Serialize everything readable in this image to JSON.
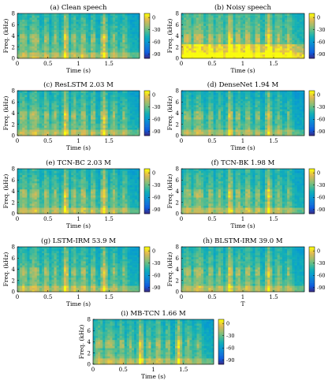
{
  "chart_data": [
    {
      "type": "heatmap",
      "title": "(a) Clean speech",
      "xlabel": "Time (s)",
      "ylabel": "Freq. (kHz)",
      "xlim": [
        0,
        2.0
      ],
      "ylim": [
        0,
        8
      ],
      "xticks": [
        "0",
        "0.5",
        "1",
        "1.5"
      ],
      "yticks": [
        "0",
        "2",
        "4",
        "6",
        "8"
      ],
      "colorbar": {
        "range": [
          -100,
          10
        ],
        "ticks": [
          "0",
          "-30",
          "-60",
          "-90"
        ]
      }
    },
    {
      "type": "heatmap",
      "title": "(b) Noisy speech",
      "xlabel": "Time (s)",
      "ylabel": "Freq. (kHz)",
      "xlim": [
        0,
        2.0
      ],
      "ylim": [
        0,
        8
      ],
      "xticks": [
        "0",
        "0.5",
        "1",
        "1.5"
      ],
      "yticks": [
        "0",
        "2",
        "4",
        "6",
        "8"
      ],
      "colorbar": {
        "range": [
          -100,
          10
        ],
        "ticks": [
          "0",
          "-30",
          "-60",
          "-90"
        ]
      }
    },
    {
      "type": "heatmap",
      "title": "(c) ResLSTM 2.03 M",
      "xlabel": "Time (s)",
      "ylabel": "Freq. (kHz)",
      "xlim": [
        0,
        2.0
      ],
      "ylim": [
        0,
        8
      ],
      "xticks": [
        "0",
        "0.5",
        "1",
        "1.5"
      ],
      "yticks": [
        "0",
        "2",
        "4",
        "6",
        "8"
      ],
      "colorbar": {
        "range": [
          -100,
          10
        ],
        "ticks": [
          "0",
          "-30",
          "-60",
          "-90"
        ]
      }
    },
    {
      "type": "heatmap",
      "title": "(d) DenseNet 1.94 M",
      "xlabel": "Time (s)",
      "ylabel": "Freq. (kHz)",
      "xlim": [
        0,
        2.0
      ],
      "ylim": [
        0,
        8
      ],
      "xticks": [
        "0",
        "0.5",
        "1",
        "1.5"
      ],
      "yticks": [
        "0",
        "2",
        "4",
        "6",
        "8"
      ],
      "colorbar": {
        "range": [
          -100,
          10
        ],
        "ticks": [
          "0",
          "-30",
          "-60",
          "-90"
        ]
      }
    },
    {
      "type": "heatmap",
      "title": "(e) TCN-BC 2.03 M",
      "xlabel": "Time (s)",
      "ylabel": "Freq. (kHz)",
      "xlim": [
        0,
        2.0
      ],
      "ylim": [
        0,
        8
      ],
      "xticks": [
        "0",
        "0.5",
        "1",
        "1.5"
      ],
      "yticks": [
        "0",
        "2",
        "4",
        "6",
        "8"
      ],
      "colorbar": {
        "range": [
          -100,
          10
        ],
        "ticks": [
          "0",
          "-30",
          "-60",
          "-90"
        ]
      }
    },
    {
      "type": "heatmap",
      "title": "(f) TCN-BK 1.98 M",
      "xlabel": "Time (s)",
      "ylabel": "Freq. (kHz)",
      "xlim": [
        0,
        2.0
      ],
      "ylim": [
        0,
        8
      ],
      "xticks": [
        "0",
        "0.5",
        "1",
        "1.5"
      ],
      "yticks": [
        "0",
        "2",
        "4",
        "6",
        "8"
      ],
      "colorbar": {
        "range": [
          -100,
          10
        ],
        "ticks": [
          "0",
          "-30",
          "-60",
          "-90"
        ]
      }
    },
    {
      "type": "heatmap",
      "title": "(g) LSTM-IRM 53.9 M",
      "xlabel": "Time (s)",
      "ylabel": "Freq. (kHz)",
      "xlim": [
        0,
        2.0
      ],
      "ylim": [
        0,
        8
      ],
      "xticks": [
        "0",
        "0.5",
        "1",
        "1.5"
      ],
      "yticks": [
        "0",
        "2",
        "4",
        "6",
        "8"
      ],
      "colorbar": {
        "range": [
          -100,
          10
        ],
        "ticks": [
          "0",
          "-30",
          "-60",
          "-90"
        ]
      }
    },
    {
      "type": "heatmap",
      "title": "(h) BLSTM-IRM 39.0 M",
      "xlabel": "T",
      "ylabel": "Freq. (kHz)",
      "xlim": [
        0,
        2.0
      ],
      "ylim": [
        0,
        8
      ],
      "xticks": [
        "0",
        "0.5",
        "1",
        "1.5"
      ],
      "yticks": [
        "0",
        "2",
        "4",
        "6",
        "8"
      ],
      "colorbar": {
        "range": [
          -100,
          10
        ],
        "ticks": [
          "0",
          "-30",
          "-60",
          "-90"
        ]
      }
    },
    {
      "type": "heatmap",
      "title": "(i) MB-TCN 1.66 M",
      "xlabel": "Time (s)",
      "ylabel": "Freq. (kHz)",
      "xlim": [
        0,
        2.0
      ],
      "ylim": [
        0,
        8
      ],
      "xticks": [
        "0",
        "0.5",
        "1",
        "1.5"
      ],
      "yticks": [
        "0",
        "2",
        "4",
        "6",
        "8"
      ],
      "colorbar": {
        "range": [
          -100,
          10
        ],
        "ticks": [
          "0",
          "-30",
          "-60",
          "-90"
        ]
      }
    }
  ]
}
